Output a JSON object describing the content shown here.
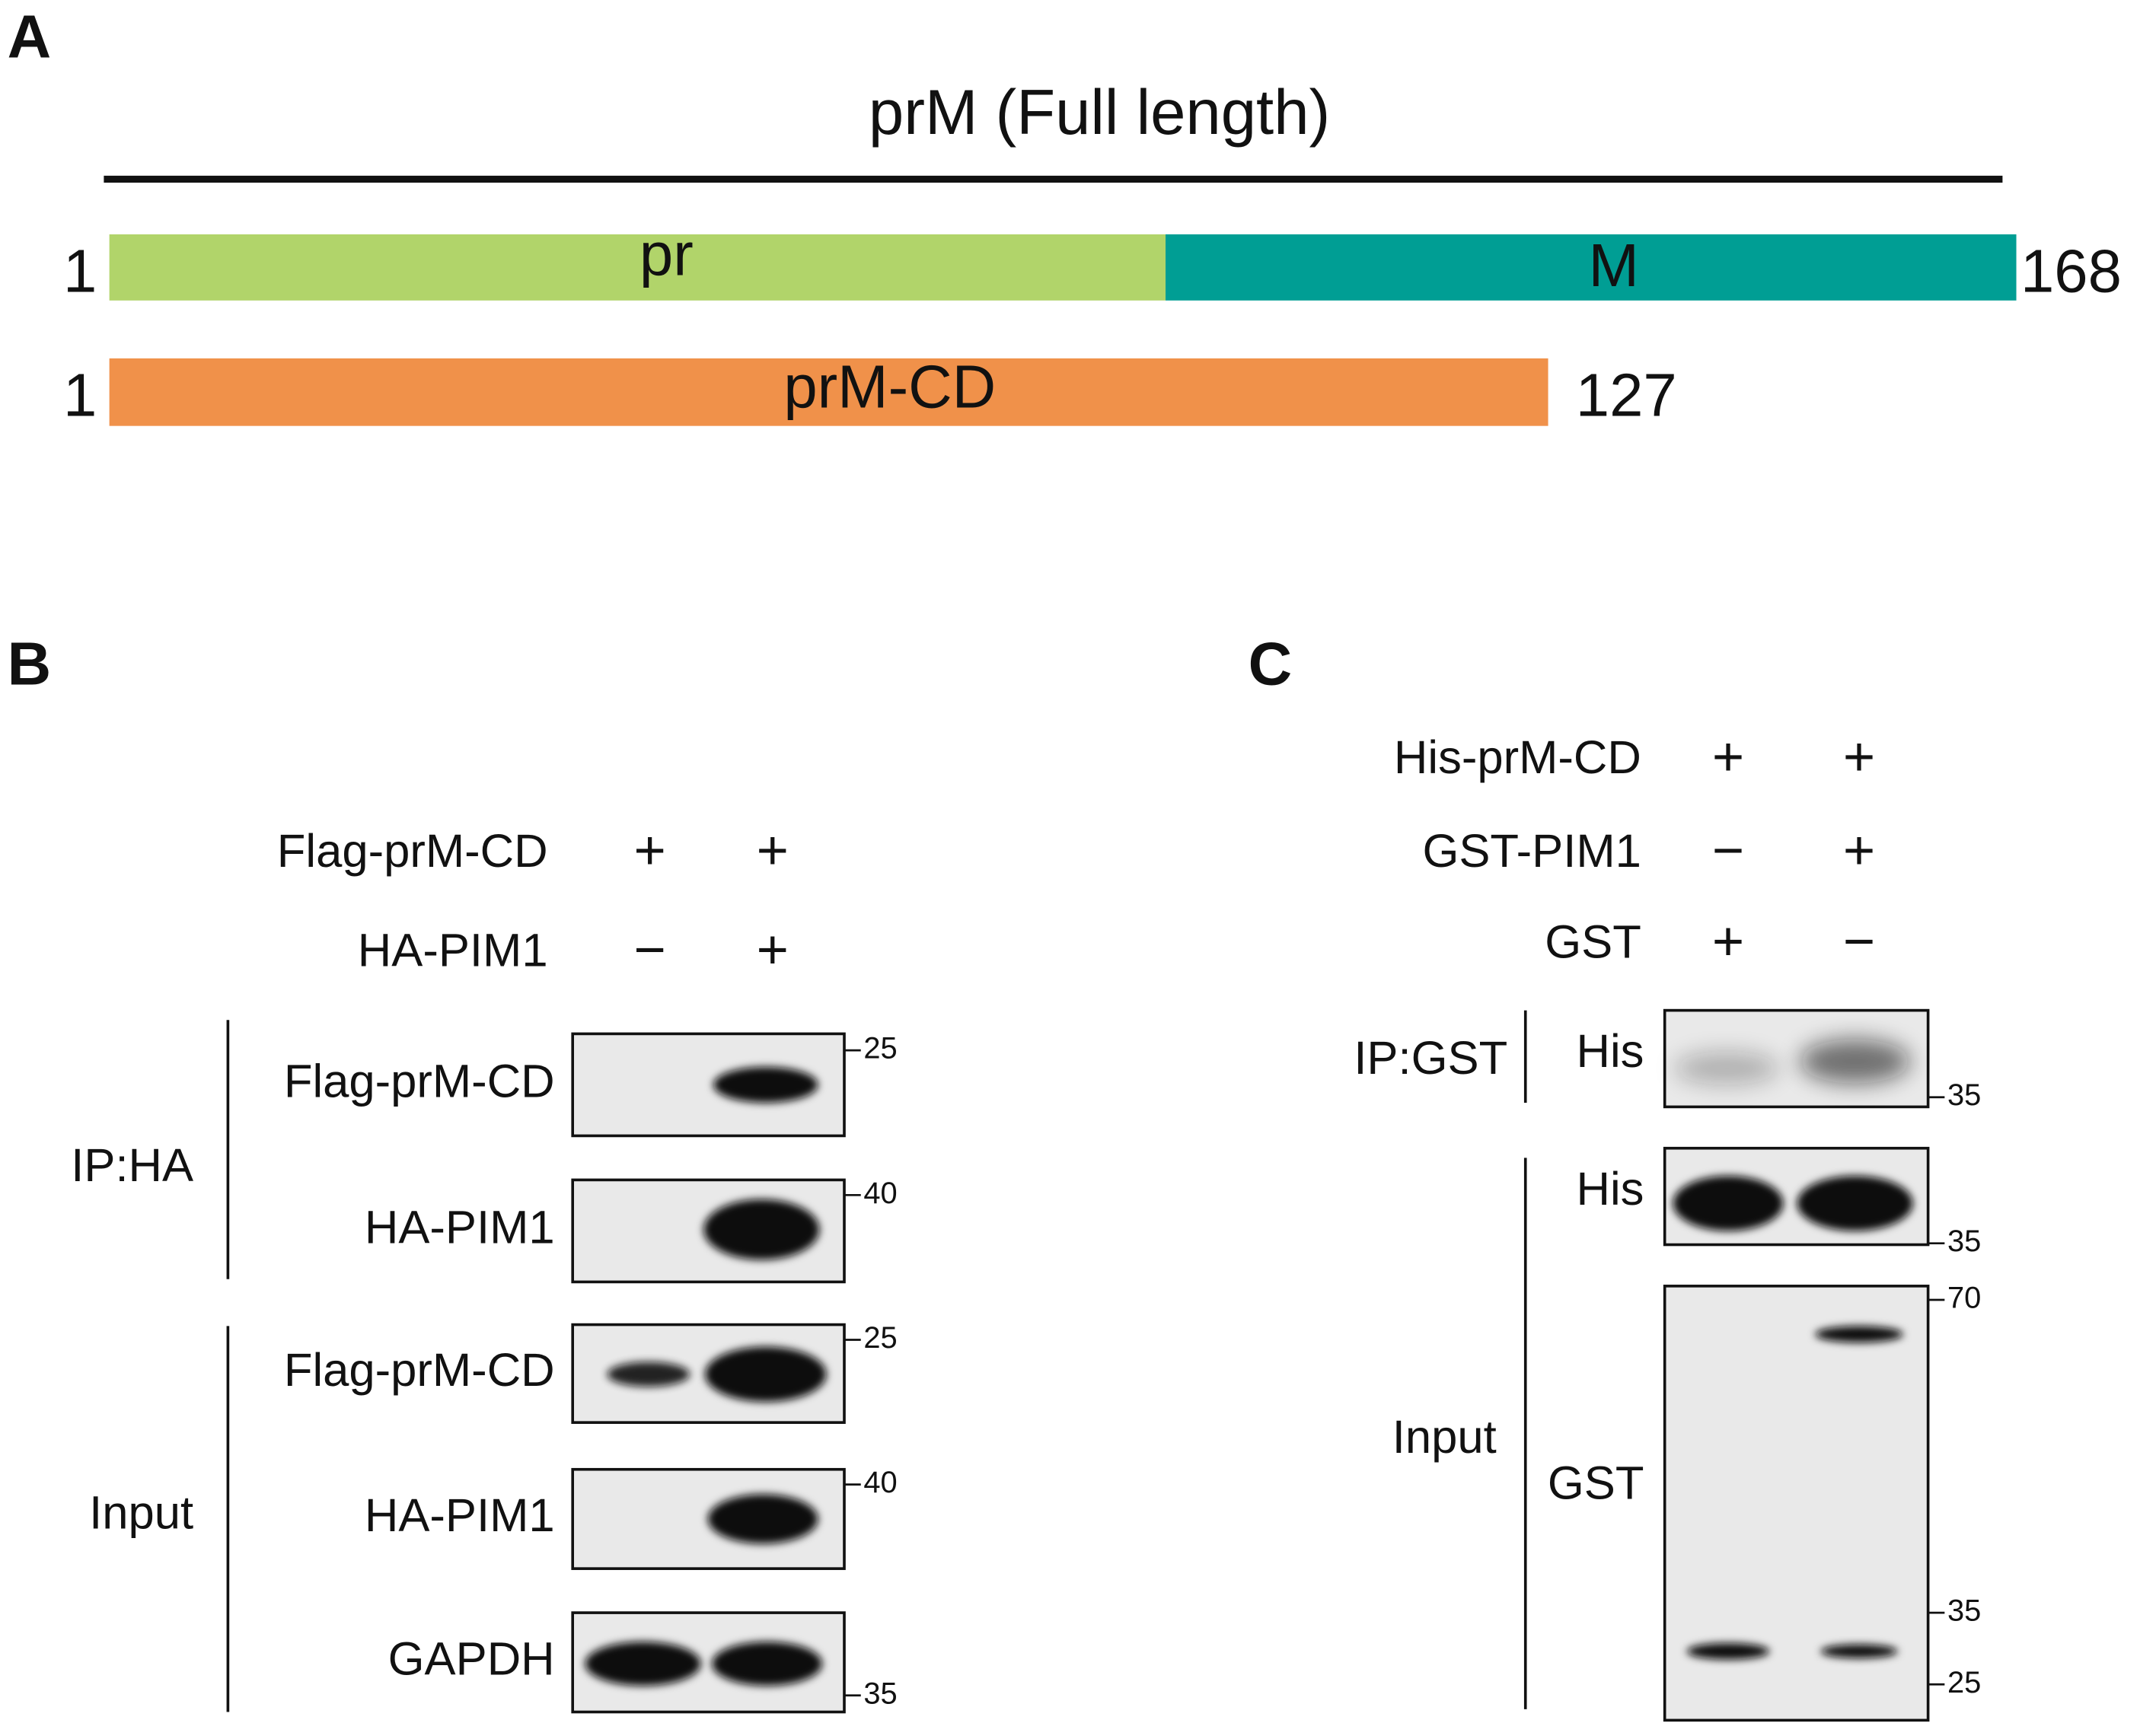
{
  "panel_a": {
    "label": "A",
    "title": "prM (Full length)",
    "full": {
      "start": 1,
      "end": 168,
      "domains": [
        "pr",
        "M"
      ]
    },
    "cd": {
      "start": 1,
      "end": 127,
      "name": "prM-CD"
    }
  },
  "panel_b": {
    "label": "B",
    "conditions": [
      {
        "name": "Flag-prM-CD",
        "signs": [
          "+",
          "+"
        ]
      },
      {
        "name": "HA-PIM1",
        "signs": [
          "−",
          "+"
        ]
      }
    ],
    "groups": [
      {
        "name": "IP:HA",
        "blots": [
          {
            "label": "Flag-prM-CD",
            "markers": [
              25
            ]
          },
          {
            "label": "HA-PIM1",
            "markers": [
              40
            ]
          }
        ]
      },
      {
        "name": "Input",
        "blots": [
          {
            "label": "Flag-prM-CD",
            "markers": [
              25
            ]
          },
          {
            "label": "HA-PIM1",
            "markers": [
              40
            ]
          },
          {
            "label": "GAPDH",
            "markers": [
              35
            ]
          }
        ]
      }
    ]
  },
  "panel_c": {
    "label": "C",
    "conditions": [
      {
        "name": "His-prM-CD",
        "signs": [
          "+",
          "+"
        ]
      },
      {
        "name": "GST-PIM1",
        "signs": [
          "−",
          "+"
        ]
      },
      {
        "name": "GST",
        "signs": [
          "+",
          "−"
        ]
      }
    ],
    "groups": [
      {
        "name": "IP:GST",
        "blots": [
          {
            "label": "His",
            "markers": [
              35
            ]
          }
        ]
      },
      {
        "name": "Input",
        "blots": [
          {
            "label": "His",
            "markers": [
              35
            ]
          },
          {
            "label": "GST",
            "markers": [
              70,
              35,
              25
            ]
          }
        ]
      }
    ]
  }
}
